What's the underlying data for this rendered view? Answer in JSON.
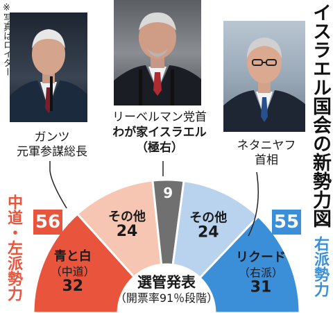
{
  "title": "イスラエル国会の新勢力図",
  "photo_credit": "※写真はロイター",
  "leaders": {
    "gantz": {
      "line1": "ガンツ",
      "line2": "元軍参謀総長"
    },
    "lieberman": {
      "line1": "リーベルマン党首",
      "line2": "わが家イスラエル",
      "line3": "（極右）"
    },
    "netanyahu": {
      "line1": "ネタニヤフ",
      "line2": "首相"
    }
  },
  "left_bloc": {
    "label": "中道・左派勢力",
    "total": "56"
  },
  "right_bloc": {
    "label": "右派勢力",
    "total": "55"
  },
  "center": {
    "line1": "選管発表",
    "line2": "（開票率91％段階）"
  },
  "chart_data": {
    "type": "pie",
    "title": "イスラエル国会の新勢力図",
    "segments": [
      {
        "name": "青と白",
        "sub": "（中道）",
        "value": 32,
        "bloc": "中道・左派勢力"
      },
      {
        "name": "その他",
        "value": 24,
        "bloc": "中道・左派勢力"
      },
      {
        "name": "",
        "value": 9,
        "bloc": "わが家イスラエル"
      },
      {
        "name": "その他",
        "value": 24,
        "bloc": "右派勢力"
      },
      {
        "name": "リクード",
        "sub": "（右派）",
        "value": 31,
        "bloc": "右派勢力"
      }
    ],
    "colors": {
      "left_dark": "#e8553c",
      "left_light": "#f7c6b3",
      "middle": "#707070",
      "right_light": "#b9d3ef",
      "right_dark": "#3a8fd8"
    }
  }
}
